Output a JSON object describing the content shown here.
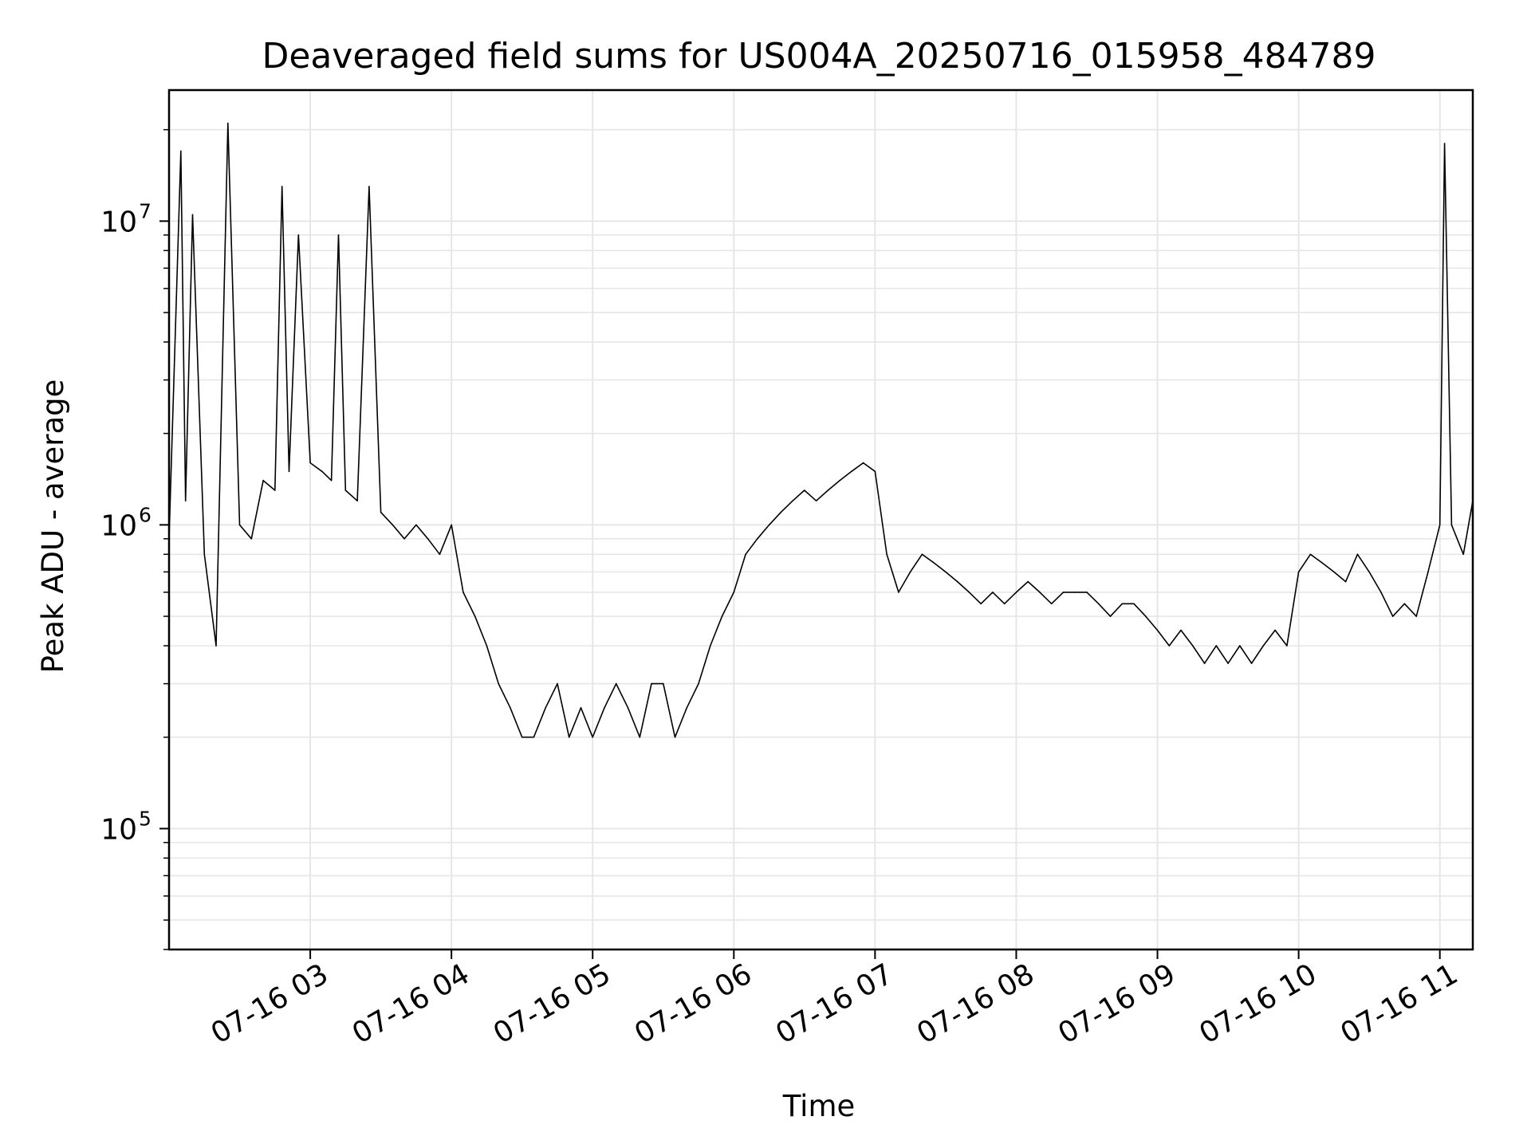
{
  "chart_data": {
    "type": "line",
    "title": "Deaveraged field sums for US004A_20250716_015958_484789",
    "xlabel": "Time",
    "ylabel": "Peak ADU - average",
    "yscale": "log",
    "ylim": [
      40000,
      27000000
    ],
    "xlim": [
      "2025-07-16T02:00:00",
      "2025-07-16T11:14:00"
    ],
    "grid": true,
    "line_color": "#000000",
    "grid_color": "#e6e6e6",
    "x_ticks": [
      {
        "value": "2025-07-16T03:00:00",
        "label": "07-16 03"
      },
      {
        "value": "2025-07-16T04:00:00",
        "label": "07-16 04"
      },
      {
        "value": "2025-07-16T05:00:00",
        "label": "07-16 05"
      },
      {
        "value": "2025-07-16T06:00:00",
        "label": "07-16 06"
      },
      {
        "value": "2025-07-16T07:00:00",
        "label": "07-16 07"
      },
      {
        "value": "2025-07-16T08:00:00",
        "label": "07-16 08"
      },
      {
        "value": "2025-07-16T09:00:00",
        "label": "07-16 09"
      },
      {
        "value": "2025-07-16T10:00:00",
        "label": "07-16 10"
      },
      {
        "value": "2025-07-16T11:00:00",
        "label": "07-16 11"
      }
    ],
    "y_ticks": [
      {
        "value": 100000,
        "base": "10",
        "exp": "5"
      },
      {
        "value": 1000000,
        "base": "10",
        "exp": "6"
      },
      {
        "value": 10000000,
        "base": "10",
        "exp": "7"
      }
    ],
    "x": [
      "2025-07-16T02:00:00",
      "2025-07-16T02:05:00",
      "2025-07-16T02:07:00",
      "2025-07-16T02:10:00",
      "2025-07-16T02:15:00",
      "2025-07-16T02:20:00",
      "2025-07-16T02:25:00",
      "2025-07-16T02:30:00",
      "2025-07-16T02:35:00",
      "2025-07-16T02:40:00",
      "2025-07-16T02:45:00",
      "2025-07-16T02:48:00",
      "2025-07-16T02:51:00",
      "2025-07-16T02:55:00",
      "2025-07-16T03:00:00",
      "2025-07-16T03:05:00",
      "2025-07-16T03:09:00",
      "2025-07-16T03:12:00",
      "2025-07-16T03:15:00",
      "2025-07-16T03:20:00",
      "2025-07-16T03:25:00",
      "2025-07-16T03:30:00",
      "2025-07-16T03:35:00",
      "2025-07-16T03:40:00",
      "2025-07-16T03:45:00",
      "2025-07-16T03:50:00",
      "2025-07-16T03:55:00",
      "2025-07-16T04:00:00",
      "2025-07-16T04:05:00",
      "2025-07-16T04:10:00",
      "2025-07-16T04:15:00",
      "2025-07-16T04:20:00",
      "2025-07-16T04:25:00",
      "2025-07-16T04:30:00",
      "2025-07-16T04:35:00",
      "2025-07-16T04:40:00",
      "2025-07-16T04:45:00",
      "2025-07-16T04:50:00",
      "2025-07-16T04:55:00",
      "2025-07-16T05:00:00",
      "2025-07-16T05:05:00",
      "2025-07-16T05:10:00",
      "2025-07-16T05:15:00",
      "2025-07-16T05:20:00",
      "2025-07-16T05:25:00",
      "2025-07-16T05:30:00",
      "2025-07-16T05:35:00",
      "2025-07-16T05:40:00",
      "2025-07-16T05:45:00",
      "2025-07-16T05:50:00",
      "2025-07-16T05:55:00",
      "2025-07-16T06:00:00",
      "2025-07-16T06:05:00",
      "2025-07-16T06:10:00",
      "2025-07-16T06:15:00",
      "2025-07-16T06:20:00",
      "2025-07-16T06:25:00",
      "2025-07-16T06:30:00",
      "2025-07-16T06:35:00",
      "2025-07-16T06:40:00",
      "2025-07-16T06:45:00",
      "2025-07-16T06:50:00",
      "2025-07-16T06:55:00",
      "2025-07-16T07:00:00",
      "2025-07-16T07:05:00",
      "2025-07-16T07:10:00",
      "2025-07-16T07:15:00",
      "2025-07-16T07:20:00",
      "2025-07-16T07:25:00",
      "2025-07-16T07:30:00",
      "2025-07-16T07:35:00",
      "2025-07-16T07:40:00",
      "2025-07-16T07:45:00",
      "2025-07-16T07:50:00",
      "2025-07-16T07:55:00",
      "2025-07-16T08:00:00",
      "2025-07-16T08:05:00",
      "2025-07-16T08:10:00",
      "2025-07-16T08:15:00",
      "2025-07-16T08:20:00",
      "2025-07-16T08:25:00",
      "2025-07-16T08:30:00",
      "2025-07-16T08:35:00",
      "2025-07-16T08:40:00",
      "2025-07-16T08:45:00",
      "2025-07-16T08:50:00",
      "2025-07-16T08:55:00",
      "2025-07-16T09:00:00",
      "2025-07-16T09:05:00",
      "2025-07-16T09:10:00",
      "2025-07-16T09:15:00",
      "2025-07-16T09:20:00",
      "2025-07-16T09:25:00",
      "2025-07-16T09:30:00",
      "2025-07-16T09:35:00",
      "2025-07-16T09:40:00",
      "2025-07-16T09:45:00",
      "2025-07-16T09:50:00",
      "2025-07-16T09:55:00",
      "2025-07-16T10:00:00",
      "2025-07-16T10:05:00",
      "2025-07-16T10:10:00",
      "2025-07-16T10:15:00",
      "2025-07-16T10:20:00",
      "2025-07-16T10:25:00",
      "2025-07-16T10:30:00",
      "2025-07-16T10:35:00",
      "2025-07-16T10:40:00",
      "2025-07-16T10:45:00",
      "2025-07-16T10:50:00",
      "2025-07-16T10:55:00",
      "2025-07-16T11:00:00",
      "2025-07-16T11:02:00",
      "2025-07-16T11:05:00",
      "2025-07-16T11:10:00",
      "2025-07-16T11:14:00"
    ],
    "y": [
      900000,
      17000000,
      1200000,
      10500000,
      800000,
      400000,
      21000000,
      1000000,
      900000,
      1400000,
      1300000,
      13000000,
      1500000,
      9000000,
      1600000,
      1500000,
      1400000,
      9000000,
      1300000,
      1200000,
      13000000,
      1100000,
      1000000,
      900000,
      1000000,
      900000,
      800000,
      1000000,
      600000,
      500000,
      400000,
      300000,
      250000,
      200000,
      200000,
      250000,
      300000,
      200000,
      250000,
      200000,
      250000,
      300000,
      250000,
      200000,
      300000,
      300000,
      200000,
      250000,
      300000,
      400000,
      500000,
      600000,
      800000,
      900000,
      1000000,
      1100000,
      1200000,
      1300000,
      1200000,
      1300000,
      1400000,
      1500000,
      1600000,
      1500000,
      800000,
      600000,
      700000,
      800000,
      750000,
      700000,
      650000,
      600000,
      550000,
      600000,
      550000,
      600000,
      650000,
      600000,
      550000,
      600000,
      600000,
      600000,
      550000,
      500000,
      550000,
      550000,
      500000,
      450000,
      400000,
      450000,
      400000,
      350000,
      400000,
      350000,
      400000,
      350000,
      400000,
      450000,
      400000,
      700000,
      800000,
      750000,
      700000,
      650000,
      800000,
      700000,
      600000,
      500000,
      550000,
      500000,
      700000,
      1000000,
      18000000,
      1000000,
      800000,
      1200000
    ]
  }
}
